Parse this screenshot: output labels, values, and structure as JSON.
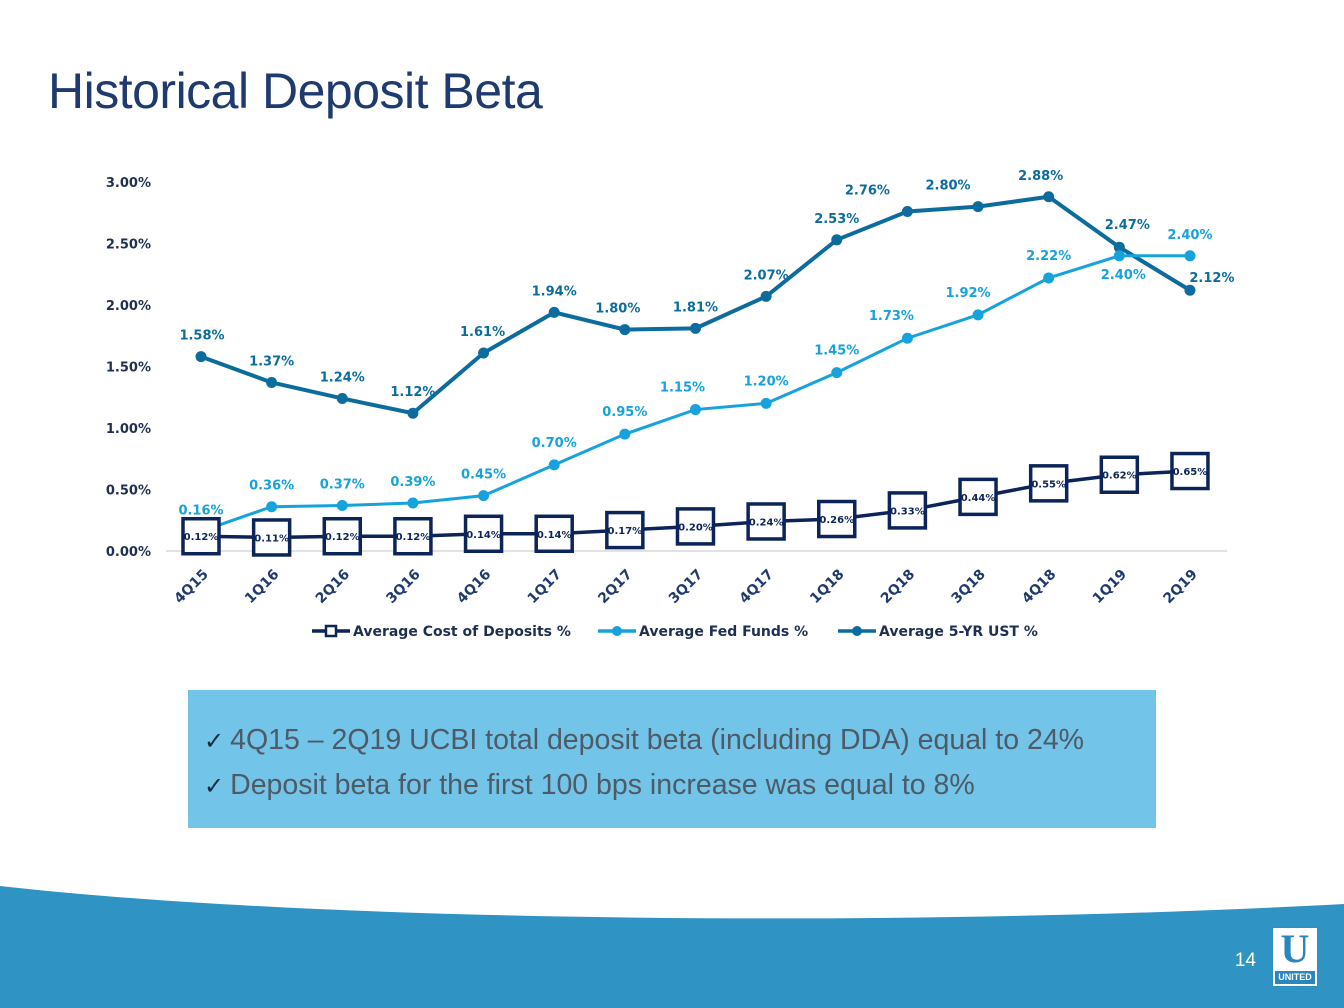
{
  "slide": {
    "title": "Historical Deposit Beta",
    "page_number": "14",
    "logo": {
      "mark": "U",
      "word": "UNITED"
    }
  },
  "callout": {
    "check_symbol": "✓",
    "bullets": [
      "4Q15 – 2Q19 UCBI total deposit beta (including DDA) equal to 24%",
      "Deposit beta for the first 100 bps increase was equal to 8%"
    ]
  },
  "colors": {
    "title": "#1f3a6e",
    "cost_of_deposits": "#0c2459",
    "fed_funds": "#16a2dd",
    "ust_5yr": "#0d6c9e",
    "callout_bg": "#72c4e8",
    "footer_wave": "#2f93c4"
  },
  "chart_data": {
    "type": "line",
    "title": "",
    "xlabel": "",
    "ylabel": "",
    "ylim": [
      0,
      3
    ],
    "y_ticks": [
      "0.00%",
      "0.50%",
      "1.00%",
      "1.50%",
      "2.00%",
      "2.50%",
      "3.00%"
    ],
    "categories": [
      "4Q15",
      "1Q16",
      "2Q16",
      "3Q16",
      "4Q16",
      "1Q17",
      "2Q17",
      "3Q17",
      "4Q17",
      "1Q18",
      "2Q18",
      "3Q18",
      "4Q18",
      "1Q19",
      "2Q19"
    ],
    "legend_position": "bottom",
    "series": [
      {
        "name": "Average Cost of Deposits %",
        "marker": "square",
        "values": [
          0.12,
          0.11,
          0.12,
          0.12,
          0.14,
          0.14,
          0.17,
          0.2,
          0.24,
          0.26,
          0.33,
          0.44,
          0.55,
          0.62,
          0.65
        ],
        "labels": [
          "0.12%",
          "0.11%",
          "0.12%",
          "0.12%",
          "0.14%",
          "0.14%",
          "0.17%",
          "0.20%",
          "0.24%",
          "0.26%",
          "0.33%",
          "0.44%",
          "0.55%",
          "0.62%",
          "0.65%"
        ]
      },
      {
        "name": "Average Fed Funds %",
        "marker": "circle",
        "values": [
          0.16,
          0.36,
          0.37,
          0.39,
          0.45,
          0.7,
          0.95,
          1.15,
          1.2,
          1.45,
          1.73,
          1.92,
          2.22,
          2.4,
          2.4
        ],
        "labels": [
          "0.16%",
          "0.36%",
          "0.37%",
          "0.39%",
          "0.45%",
          "0.70%",
          "0.95%",
          "1.15%",
          "1.20%",
          "1.45%",
          "1.73%",
          "1.92%",
          "2.22%",
          "2.40%",
          "2.40%"
        ]
      },
      {
        "name": "Average 5-YR UST %",
        "marker": "circle",
        "values": [
          1.58,
          1.37,
          1.24,
          1.12,
          1.61,
          1.94,
          1.8,
          1.81,
          2.07,
          2.53,
          2.76,
          2.8,
          2.88,
          2.47,
          2.12
        ],
        "labels": [
          "1.58%",
          "1.37%",
          "1.24%",
          "1.12%",
          "1.61%",
          "1.94%",
          "1.80%",
          "1.81%",
          "2.07%",
          "2.53%",
          "2.76%",
          "2.80%",
          "2.88%",
          "2.47%",
          "2.12%"
        ]
      }
    ]
  }
}
